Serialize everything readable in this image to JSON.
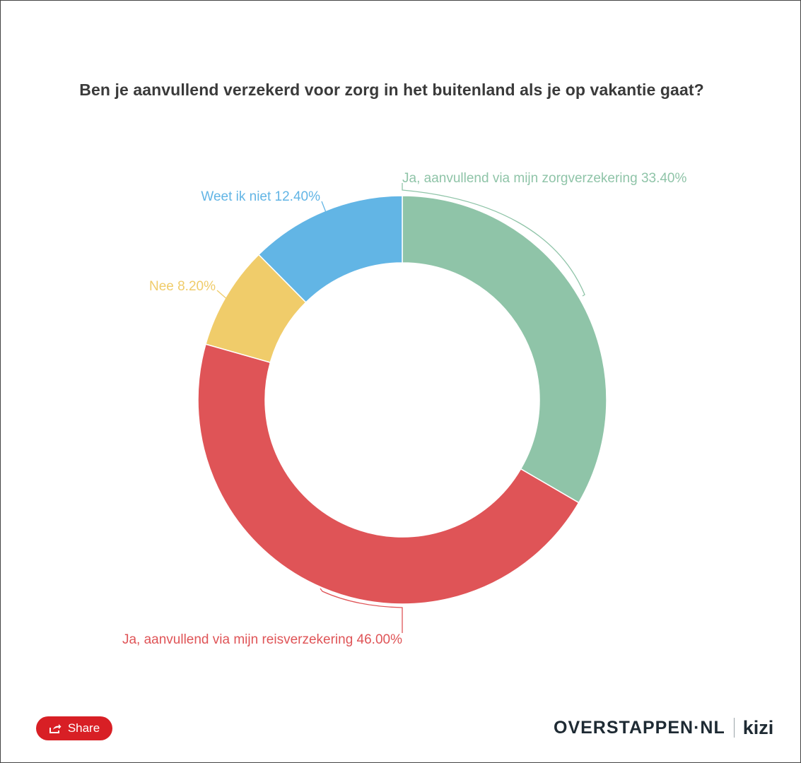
{
  "title": "Ben je aanvullend verzekerd voor zorg in het buitenland als je op vakantie gaat?",
  "chart_data": {
    "type": "pie",
    "donut": true,
    "title": "Ben je aanvullend verzekerd voor zorg in het buitenland als je op vakantie gaat?",
    "slices": [
      {
        "label": "Ja, aanvullend via mijn zorgverzekering",
        "value": 33.4,
        "display": "Ja, aanvullend via mijn zorgverzekering 33.40%",
        "color": "#8fc4a8"
      },
      {
        "label": "Ja, aanvullend via mijn reisverzekering",
        "value": 46.0,
        "display": "Ja, aanvullend via mijn reisverzekering 46.00%",
        "color": "#df5457"
      },
      {
        "label": "Nee",
        "value": 8.2,
        "display": "Nee 8.20%",
        "color": "#f0cc6a"
      },
      {
        "label": "Weet ik niet",
        "value": 12.4,
        "display": "Weet ik niet 12.40%",
        "color": "#62b5e5"
      }
    ],
    "legend": false
  },
  "footer": {
    "share_label": "Share",
    "brand_name": "OVERSTAPPEN·NL",
    "brand_partner": "kizi"
  },
  "colors": {
    "share_button": "#d81f25",
    "brand_text": "#1e2a33"
  },
  "icons": {
    "share": "share-icon"
  }
}
